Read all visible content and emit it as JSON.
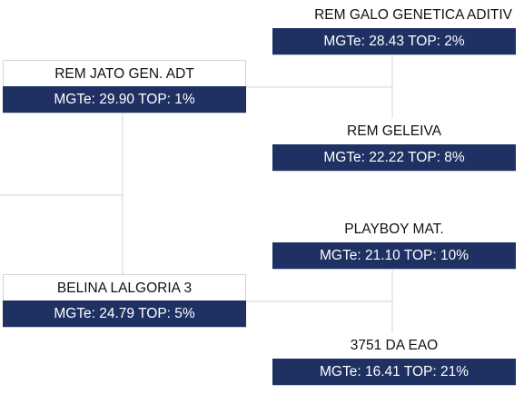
{
  "accent_color": "#1f3163",
  "nodes": {
    "galo": {
      "name": "REM GALO GENETICA ADITIV",
      "stats": "MGTe: 28.43 TOP: 2%"
    },
    "jato": {
      "name": "REM JATO GEN. ADT",
      "stats": "MGTe: 29.90 TOP: 1%"
    },
    "geleiva": {
      "name": "REM GELEIVA",
      "stats": "MGTe: 22.22 TOP: 8%"
    },
    "playboy": {
      "name": "PLAYBOY MAT.",
      "stats": "MGTe: 21.10 TOP: 10%"
    },
    "belina": {
      "name": "BELINA LALGORIA 3",
      "stats": "MGTe: 24.79 TOP: 5%"
    },
    "dea": {
      "name": "3751 DA EAO",
      "stats": "MGTe: 16.41 TOP: 21%"
    }
  }
}
